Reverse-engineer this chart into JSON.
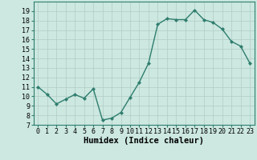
{
  "xlabel": "Humidex (Indice chaleur)",
  "x_values": [
    0,
    1,
    2,
    3,
    4,
    5,
    6,
    7,
    8,
    9,
    10,
    11,
    12,
    13,
    14,
    15,
    16,
    17,
    18,
    19,
    20,
    21,
    22,
    23
  ],
  "y_values": [
    11,
    10.2,
    9.2,
    9.7,
    10.2,
    9.8,
    10.8,
    7.5,
    7.7,
    8.3,
    9.9,
    11.5,
    13.5,
    17.6,
    18.2,
    18.1,
    18.1,
    19.1,
    18.1,
    17.8,
    17.1,
    15.8,
    15.3,
    13.5
  ],
  "line_color": "#2e7d6e",
  "marker": "D",
  "marker_size": 2,
  "bg_color": "#cce8e0",
  "grid_color": "#b0ccC4",
  "ylim": [
    7,
    20
  ],
  "xlim": [
    -0.5,
    23.5
  ],
  "yticks": [
    7,
    8,
    9,
    10,
    11,
    12,
    13,
    14,
    15,
    16,
    17,
    18,
    19
  ],
  "xticks": [
    0,
    1,
    2,
    3,
    4,
    5,
    6,
    7,
    8,
    9,
    10,
    11,
    12,
    13,
    14,
    15,
    16,
    17,
    18,
    19,
    20,
    21,
    22,
    23
  ],
  "xlabel_fontsize": 7.5,
  "tick_fontsize": 6,
  "line_width": 1.0
}
